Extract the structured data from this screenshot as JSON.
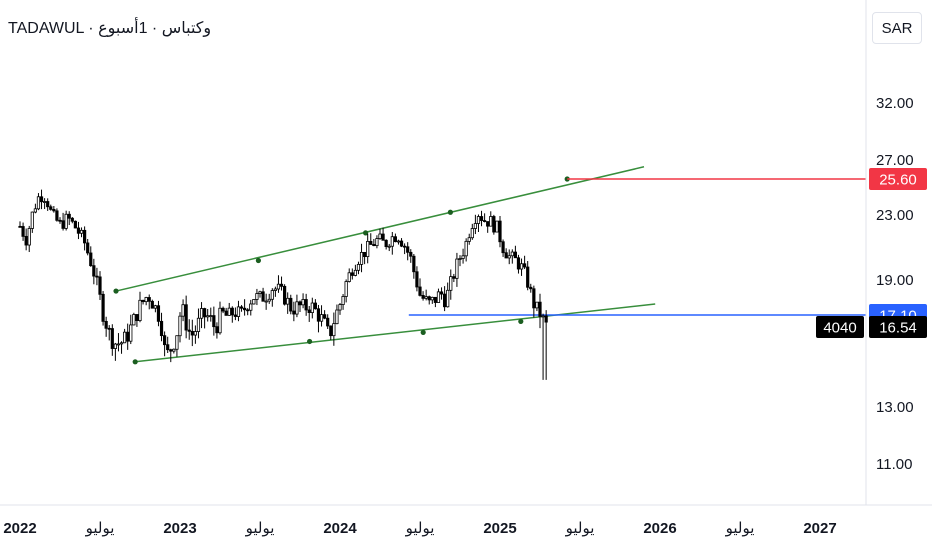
{
  "header": {
    "exchange": "TADAWUL",
    "separator": " · ",
    "name": "وكتباس",
    "interval": "1أسبوع"
  },
  "currency": "SAR",
  "chart_data": {
    "type": "candlestick",
    "symbol": "4040",
    "y_ticks": [
      32.0,
      27.0,
      23.0,
      19.0,
      13.0,
      11.0
    ],
    "x_ticks": [
      {
        "label": "2022",
        "bold": true
      },
      {
        "label": "يوليو",
        "bold": false
      },
      {
        "label": "2023",
        "bold": true
      },
      {
        "label": "يوليو",
        "bold": false
      },
      {
        "label": "2024",
        "bold": true
      },
      {
        "label": "يوليو",
        "bold": false
      },
      {
        "label": "2025",
        "bold": true
      },
      {
        "label": "يوليو",
        "bold": false
      },
      {
        "label": "2026",
        "bold": true
      },
      {
        "label": "يوليو",
        "bold": false
      },
      {
        "label": "2027",
        "bold": true
      }
    ],
    "price_labels": [
      {
        "value": 25.6,
        "text": "25.60",
        "color": "#f23645"
      },
      {
        "value": 17.1,
        "text": "17.10",
        "color": "#2962ff"
      },
      {
        "value": 16.54,
        "text": "16.54",
        "color": "#000000"
      }
    ],
    "last_price": 16.54,
    "horizontal_lines": [
      {
        "name": "target",
        "value": 25.6,
        "color": "#f23645"
      },
      {
        "name": "support",
        "value": 17.1,
        "color": "#2962ff"
      }
    ],
    "channel_color": "#388e3c",
    "price_path": [
      [
        0.0,
        22.3
      ],
      [
        0.04,
        21.5
      ],
      [
        0.08,
        23.2
      ],
      [
        0.12,
        24.4
      ],
      [
        0.16,
        24.3
      ],
      [
        0.2,
        23.0
      ],
      [
        0.25,
        22.4
      ],
      [
        0.3,
        22.8
      ],
      [
        0.35,
        22.2
      ],
      [
        0.4,
        21.4
      ],
      [
        0.44,
        20.2
      ],
      [
        0.48,
        18.8
      ],
      [
        0.52,
        17.2
      ],
      [
        0.56,
        16.2
      ],
      [
        0.6,
        15.8
      ],
      [
        0.65,
        15.9
      ],
      [
        0.7,
        16.6
      ],
      [
        0.75,
        17.6
      ],
      [
        0.8,
        18.2
      ],
      [
        0.84,
        17.6
      ],
      [
        0.88,
        16.9
      ],
      [
        0.9,
        15.6
      ],
      [
        0.92,
        15.3
      ],
      [
        0.95,
        15.7
      ],
      [
        0.98,
        16.3
      ],
      [
        1.0,
        17.1
      ],
      [
        1.02,
        17.3
      ],
      [
        1.05,
        16.4
      ],
      [
        1.08,
        16.2
      ],
      [
        1.11,
        16.6
      ],
      [
        1.14,
        17.1
      ],
      [
        1.18,
        17.0
      ],
      [
        1.22,
        16.5
      ],
      [
        1.26,
        17.2
      ],
      [
        1.3,
        17.0
      ],
      [
        1.34,
        17.3
      ],
      [
        1.38,
        17.1
      ],
      [
        1.42,
        17.7
      ],
      [
        1.46,
        18.1
      ],
      [
        1.5,
        18.0
      ],
      [
        1.54,
        18.2
      ],
      [
        1.58,
        18.6
      ],
      [
        1.62,
        18.4
      ],
      [
        1.66,
        18.0
      ],
      [
        1.7,
        17.4
      ],
      [
        1.74,
        17.6
      ],
      [
        1.78,
        17.5
      ],
      [
        1.82,
        17.6
      ],
      [
        1.86,
        17.2
      ],
      [
        1.9,
        16.7
      ],
      [
        1.93,
        16.1
      ],
      [
        1.96,
        16.8
      ],
      [
        2.0,
        17.7
      ],
      [
        2.04,
        18.9
      ],
      [
        2.08,
        19.8
      ],
      [
        2.12,
        20.4
      ],
      [
        2.16,
        20.8
      ],
      [
        2.2,
        21.2
      ],
      [
        2.24,
        21.5
      ],
      [
        2.28,
        21.2
      ],
      [
        2.32,
        21.6
      ],
      [
        2.36,
        21.8
      ],
      [
        2.4,
        21.2
      ],
      [
        2.44,
        20.4
      ],
      [
        2.47,
        19.2
      ],
      [
        2.5,
        18.2
      ],
      [
        2.53,
        17.9
      ],
      [
        2.56,
        17.7
      ],
      [
        2.6,
        18.0
      ],
      [
        2.63,
        18.3
      ],
      [
        2.66,
        17.9
      ],
      [
        2.7,
        19.0
      ],
      [
        2.74,
        20.2
      ],
      [
        2.78,
        21.0
      ],
      [
        2.82,
        22.4
      ],
      [
        2.86,
        23.2
      ],
      [
        2.9,
        22.7
      ],
      [
        2.94,
        22.6
      ],
      [
        2.98,
        22.2
      ],
      [
        3.02,
        21.0
      ],
      [
        3.06,
        20.4
      ],
      [
        3.1,
        20.2
      ],
      [
        3.14,
        19.7
      ],
      [
        3.17,
        19.0
      ],
      [
        3.2,
        18.0
      ],
      [
        3.22,
        17.5
      ],
      [
        3.24,
        17.3
      ],
      [
        3.26,
        17.1
      ],
      [
        3.28,
        16.5
      ],
      [
        3.29,
        16.6
      ]
    ]
  }
}
